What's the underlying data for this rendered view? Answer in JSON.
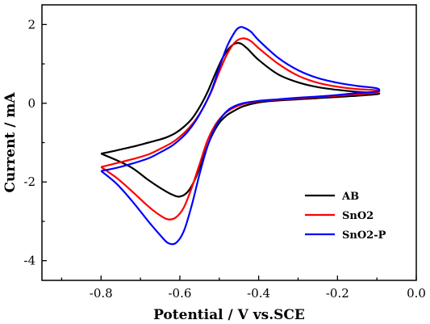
{
  "chart_data": {
    "type": "line",
    "title": "",
    "xlabel": "Potential / V vs.SCE",
    "ylabel": "Current / mA",
    "xlim": [
      -0.95,
      0.0
    ],
    "ylim": [
      -4.5,
      2.5
    ],
    "x_ticks": [
      {
        "value": -0.8,
        "label": "-0.8"
      },
      {
        "value": -0.6,
        "label": "-0.6"
      },
      {
        "value": -0.4,
        "label": "-0.4"
      },
      {
        "value": -0.2,
        "label": "-0.2"
      },
      {
        "value": 0.0,
        "label": "0.0"
      }
    ],
    "y_ticks": [
      {
        "value": 2,
        "label": "2"
      },
      {
        "value": 0,
        "label": "0"
      },
      {
        "value": -2,
        "label": "-2"
      },
      {
        "value": -4,
        "label": "-4"
      }
    ],
    "grid": false,
    "legend": "bottom-right",
    "series": [
      {
        "name": "AB",
        "color": "#000000",
        "x": [
          -0.8,
          -0.76,
          -0.72,
          -0.68,
          -0.65,
          -0.62,
          -0.6,
          -0.58,
          -0.56,
          -0.54,
          -0.52,
          -0.5,
          -0.48,
          -0.46,
          -0.44,
          -0.4,
          -0.35,
          -0.3,
          -0.25,
          -0.2,
          -0.15,
          -0.1,
          -0.1,
          -0.15,
          -0.2,
          -0.25,
          -0.3,
          -0.35,
          -0.4,
          -0.43,
          -0.45,
          -0.47,
          -0.49,
          -0.51,
          -0.53,
          -0.55,
          -0.57,
          -0.59,
          -0.61,
          -0.63,
          -0.65,
          -0.68,
          -0.71,
          -0.74,
          -0.77,
          -0.8
        ],
        "y": [
          -1.28,
          -1.45,
          -1.65,
          -1.95,
          -2.15,
          -2.32,
          -2.37,
          -2.25,
          -1.9,
          -1.35,
          -0.85,
          -0.5,
          -0.3,
          -0.18,
          -0.08,
          0.02,
          0.07,
          0.1,
          0.13,
          0.16,
          0.19,
          0.23,
          0.26,
          0.29,
          0.34,
          0.41,
          0.53,
          0.73,
          1.1,
          1.4,
          1.53,
          1.45,
          1.18,
          0.75,
          0.28,
          -0.1,
          -0.4,
          -0.6,
          -0.75,
          -0.85,
          -0.92,
          -1.0,
          -1.08,
          -1.15,
          -1.22,
          -1.28
        ]
      },
      {
        "name": "SnO2",
        "color": "#ff0000",
        "x": [
          -0.8,
          -0.76,
          -0.72,
          -0.68,
          -0.65,
          -0.63,
          -0.61,
          -0.59,
          -0.57,
          -0.55,
          -0.53,
          -0.51,
          -0.49,
          -0.47,
          -0.44,
          -0.4,
          -0.35,
          -0.3,
          -0.25,
          -0.2,
          -0.15,
          -0.1,
          -0.1,
          -0.15,
          -0.2,
          -0.25,
          -0.3,
          -0.35,
          -0.4,
          -0.42,
          -0.44,
          -0.46,
          -0.48,
          -0.5,
          -0.52,
          -0.54,
          -0.56,
          -0.58,
          -0.6,
          -0.62,
          -0.65,
          -0.68,
          -0.72,
          -0.76,
          -0.8
        ],
        "y": [
          -1.62,
          -1.9,
          -2.25,
          -2.62,
          -2.85,
          -2.95,
          -2.9,
          -2.65,
          -2.15,
          -1.55,
          -0.95,
          -0.55,
          -0.3,
          -0.15,
          -0.02,
          0.05,
          0.09,
          0.12,
          0.16,
          0.19,
          0.23,
          0.27,
          0.33,
          0.36,
          0.42,
          0.52,
          0.7,
          1.0,
          1.4,
          1.58,
          1.65,
          1.55,
          1.25,
          0.8,
          0.3,
          -0.1,
          -0.42,
          -0.66,
          -0.85,
          -1.0,
          -1.16,
          -1.3,
          -1.42,
          -1.52,
          -1.62
        ]
      },
      {
        "name": "SnO2-P",
        "color": "#0000ff",
        "x": [
          -0.8,
          -0.76,
          -0.72,
          -0.68,
          -0.65,
          -0.63,
          -0.61,
          -0.59,
          -0.57,
          -0.55,
          -0.53,
          -0.51,
          -0.49,
          -0.47,
          -0.44,
          -0.4,
          -0.35,
          -0.3,
          -0.25,
          -0.2,
          -0.15,
          -0.1,
          -0.1,
          -0.15,
          -0.2,
          -0.25,
          -0.3,
          -0.35,
          -0.4,
          -0.42,
          -0.44,
          -0.45,
          -0.46,
          -0.48,
          -0.5,
          -0.52,
          -0.54,
          -0.56,
          -0.58,
          -0.6,
          -0.62,
          -0.65,
          -0.68,
          -0.72,
          -0.76,
          -0.8
        ],
        "y": [
          -1.72,
          -2.05,
          -2.5,
          -3.0,
          -3.35,
          -3.55,
          -3.55,
          -3.25,
          -2.6,
          -1.8,
          -1.1,
          -0.6,
          -0.3,
          -0.12,
          0.0,
          0.06,
          0.1,
          0.14,
          0.17,
          0.21,
          0.26,
          0.3,
          0.38,
          0.44,
          0.52,
          0.64,
          0.84,
          1.15,
          1.6,
          1.82,
          1.93,
          1.92,
          1.82,
          1.45,
          0.9,
          0.32,
          -0.1,
          -0.45,
          -0.72,
          -0.92,
          -1.08,
          -1.25,
          -1.4,
          -1.53,
          -1.64,
          -1.72
        ]
      }
    ]
  }
}
